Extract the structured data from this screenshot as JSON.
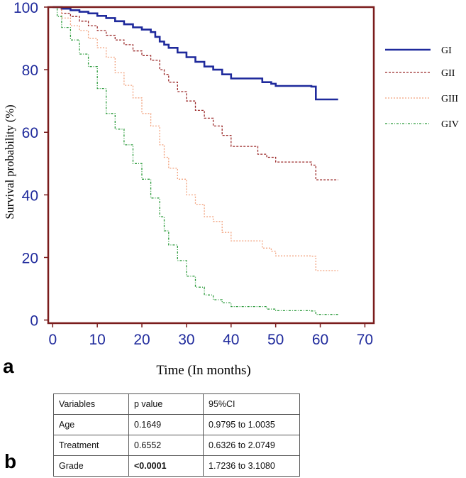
{
  "panels": {
    "a": "a",
    "b": "b"
  },
  "chart_data": {
    "type": "line",
    "title": "",
    "xlabel": "Time (In months)",
    "ylabel": "Survival probability (%)",
    "xlim": [
      -1,
      72
    ],
    "ylim": [
      -1,
      100
    ],
    "xticks": [
      0,
      10,
      20,
      30,
      40,
      50,
      60,
      70
    ],
    "yticks": [
      0,
      20,
      40,
      60,
      80,
      100
    ],
    "legend_position": "right",
    "series": [
      {
        "name": "GI",
        "color": "#1f2a9c",
        "dash": "",
        "width": 2.6,
        "points": [
          [
            0,
            100
          ],
          [
            2,
            99.5
          ],
          [
            4,
            99
          ],
          [
            6,
            98.5
          ],
          [
            8,
            98
          ],
          [
            10,
            97.2
          ],
          [
            12,
            96.5
          ],
          [
            14,
            95.5
          ],
          [
            16,
            94.5
          ],
          [
            18,
            93.5
          ],
          [
            20,
            92.8
          ],
          [
            22,
            92
          ],
          [
            23,
            90.5
          ],
          [
            24,
            89
          ],
          [
            25,
            88
          ],
          [
            26,
            87
          ],
          [
            28,
            85.5
          ],
          [
            30,
            84
          ],
          [
            32,
            82.5
          ],
          [
            34,
            81
          ],
          [
            36,
            80
          ],
          [
            38,
            78.5
          ],
          [
            40,
            77.2
          ],
          [
            44,
            77.2
          ],
          [
            46,
            77.2
          ],
          [
            47,
            76
          ],
          [
            49,
            75.5
          ],
          [
            50,
            74.8
          ],
          [
            55,
            74.8
          ],
          [
            58,
            74.6
          ],
          [
            59,
            70.5
          ],
          [
            64,
            70.5
          ]
        ]
      },
      {
        "name": "GII",
        "color": "#9b2a2a",
        "dash": "3,2",
        "width": 1.3,
        "points": [
          [
            0,
            100
          ],
          [
            2,
            98
          ],
          [
            4,
            97
          ],
          [
            6,
            95.5
          ],
          [
            8,
            94
          ],
          [
            10,
            92.5
          ],
          [
            12,
            91
          ],
          [
            14,
            89.5
          ],
          [
            16,
            88
          ],
          [
            18,
            86
          ],
          [
            20,
            84.5
          ],
          [
            22,
            83
          ],
          [
            24,
            80
          ],
          [
            25,
            78.5
          ],
          [
            26,
            76
          ],
          [
            28,
            73
          ],
          [
            30,
            70
          ],
          [
            32,
            67
          ],
          [
            34,
            64.5
          ],
          [
            36,
            62
          ],
          [
            38,
            59
          ],
          [
            40,
            55.5
          ],
          [
            45,
            55.5
          ],
          [
            46,
            53
          ],
          [
            48,
            52
          ],
          [
            50,
            50.5
          ],
          [
            55,
            50.5
          ],
          [
            58,
            49.5
          ],
          [
            59,
            44.8
          ],
          [
            64,
            44.8
          ]
        ]
      },
      {
        "name": "GIII",
        "color": "#f2a27e",
        "dash": "2,2",
        "width": 1.3,
        "points": [
          [
            0,
            100
          ],
          [
            2,
            96.5
          ],
          [
            4,
            94
          ],
          [
            6,
            92.5
          ],
          [
            8,
            90
          ],
          [
            10,
            87
          ],
          [
            12,
            84
          ],
          [
            14,
            79
          ],
          [
            16,
            75
          ],
          [
            18,
            71
          ],
          [
            20,
            66
          ],
          [
            22,
            62
          ],
          [
            24,
            56
          ],
          [
            25,
            52
          ],
          [
            26,
            48.5
          ],
          [
            28,
            45
          ],
          [
            30,
            40
          ],
          [
            32,
            37
          ],
          [
            34,
            33
          ],
          [
            36,
            31.5
          ],
          [
            38,
            28
          ],
          [
            40,
            25.3
          ],
          [
            46,
            25.3
          ],
          [
            47,
            23
          ],
          [
            49,
            22
          ],
          [
            50,
            20.5
          ],
          [
            55,
            20.5
          ],
          [
            58,
            20.4
          ],
          [
            59,
            15.8
          ],
          [
            64,
            15.8
          ]
        ]
      },
      {
        "name": "GIV",
        "color": "#2a9a3a",
        "dash": "3,2,1,2",
        "width": 1.3,
        "points": [
          [
            0,
            100
          ],
          [
            1,
            97
          ],
          [
            2,
            93.5
          ],
          [
            4,
            89.5
          ],
          [
            6,
            85
          ],
          [
            8,
            81
          ],
          [
            10,
            74
          ],
          [
            12,
            66
          ],
          [
            14,
            61
          ],
          [
            16,
            56
          ],
          [
            18,
            50
          ],
          [
            20,
            45
          ],
          [
            22,
            39
          ],
          [
            24,
            33
          ],
          [
            25,
            28.5
          ],
          [
            26,
            24
          ],
          [
            28,
            19
          ],
          [
            30,
            14
          ],
          [
            32,
            10.5
          ],
          [
            34,
            8
          ],
          [
            36,
            6.5
          ],
          [
            38,
            5.5
          ],
          [
            40,
            4.3
          ],
          [
            44,
            4.3
          ],
          [
            46,
            4.3
          ],
          [
            48,
            3.5
          ],
          [
            50,
            3
          ],
          [
            58,
            2.9
          ],
          [
            59,
            1.8
          ],
          [
            64,
            1.8
          ]
        ]
      }
    ]
  },
  "table": {
    "headers": [
      "Variables",
      "p value",
      "95%CI"
    ],
    "rows": [
      {
        "variable": "Age",
        "p": "0.1649",
        "ci": "0.9795 to 1.0035"
      },
      {
        "variable": "Treatment",
        "p": "0.6552",
        "ci": "0.6326 to 2.0749"
      },
      {
        "variable": "Grade",
        "p": "<0.0001",
        "ci": "1.7236 to 3.1080"
      }
    ]
  }
}
